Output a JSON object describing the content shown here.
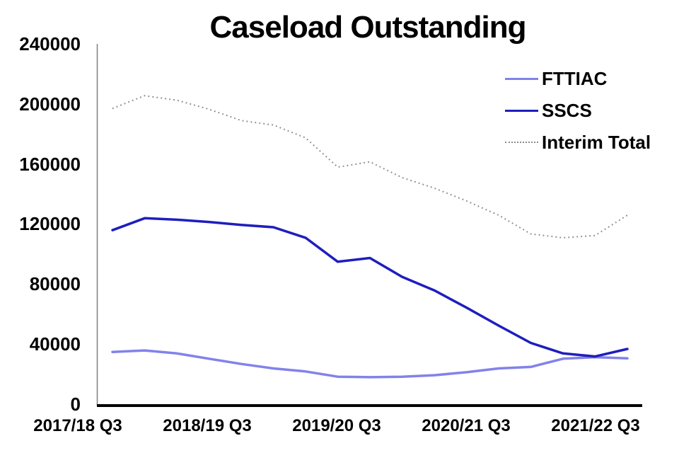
{
  "page": {
    "background_color": "#ffffff",
    "text_color": "#000000"
  },
  "chart_data": {
    "type": "line",
    "title": "Caseload Outstanding",
    "xlabel": "",
    "ylabel": "",
    "ylim": [
      0,
      240000
    ],
    "y_tick_interval": 40000,
    "y_tick_labels": [
      "240000",
      "200000",
      "160000",
      "120000",
      "80000",
      "40000",
      "0"
    ],
    "x_tick_labels": [
      "2017/18 Q3",
      "2018/19 Q3",
      "2019/20 Q3",
      "2020/21 Q3",
      "2021/22 Q3"
    ],
    "x_points_per_tick": 4,
    "n_points": 17,
    "x_unit": "quarter",
    "grid": false,
    "legend_position": "top-right",
    "y_axis_color": "#808080",
    "x_axis_color": "#000000",
    "series": [
      {
        "name": "FTTIAC",
        "color": "#8282ea",
        "style": "solid",
        "values": [
          35000,
          36000,
          34000,
          30500,
          27000,
          24000,
          22000,
          18500,
          18200,
          18500,
          19500,
          21500,
          24000,
          25000,
          30500,
          31500,
          30700
        ]
      },
      {
        "name": "SSCS",
        "color": "#1e1ebe",
        "style": "solid",
        "values": [
          116000,
          124000,
          123000,
          121500,
          119500,
          118000,
          111000,
          95000,
          97500,
          85000,
          76000,
          64500,
          52500,
          41000,
          34000,
          32000,
          37000
        ]
      },
      {
        "name": "Interim Total",
        "color": "#8a8a8a",
        "style": "dotted",
        "values": [
          197000,
          205500,
          202500,
          196500,
          189000,
          186000,
          177500,
          158000,
          161500,
          151000,
          144000,
          135500,
          126000,
          113500,
          111000,
          112500,
          126000
        ]
      }
    ]
  }
}
